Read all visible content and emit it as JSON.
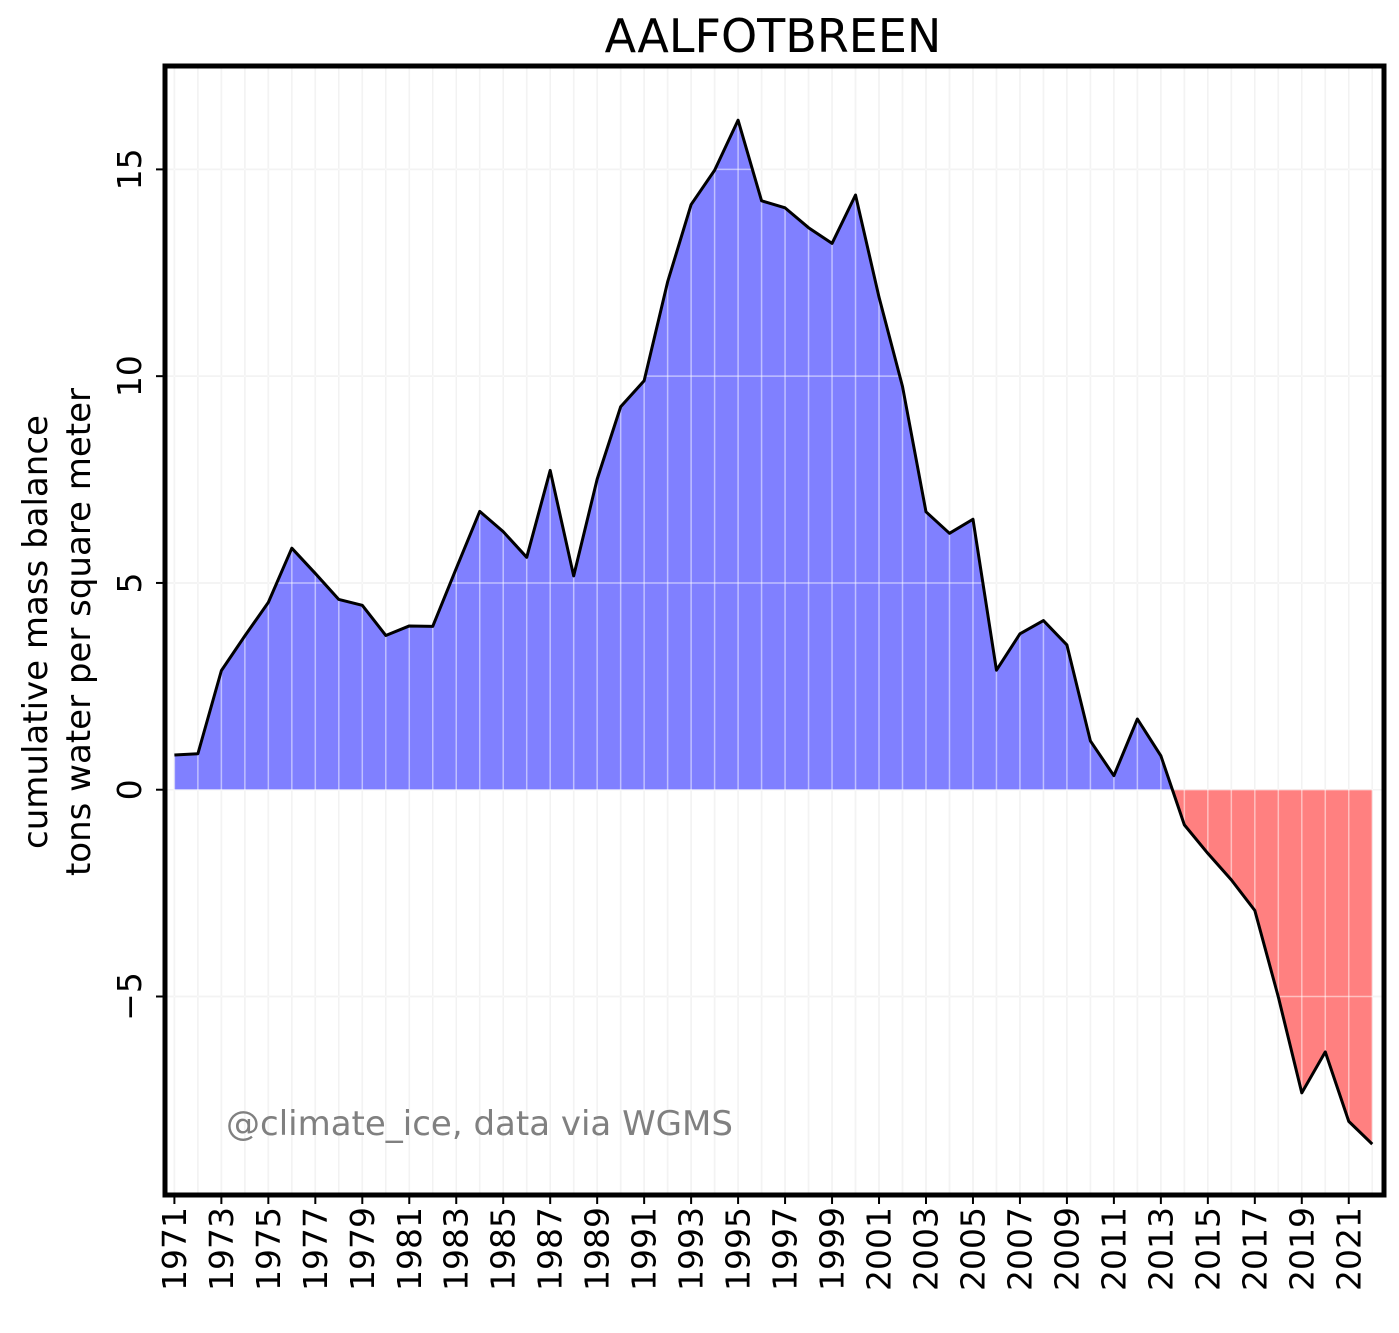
{
  "chart_data": {
    "type": "area",
    "title": "AALFOTBREEN",
    "ylabel_lines": [
      "cumulative mass balance",
      "tons water per square meter"
    ],
    "credit": "@climate_ice, data via WGMS",
    "x": [
      1971,
      1972,
      1973,
      1974,
      1975,
      1976,
      1977,
      1978,
      1979,
      1980,
      1981,
      1982,
      1983,
      1984,
      1985,
      1986,
      1987,
      1988,
      1989,
      1990,
      1991,
      1992,
      1993,
      1994,
      1995,
      1996,
      1997,
      1998,
      1999,
      2000,
      2001,
      2002,
      2003,
      2004,
      2005,
      2006,
      2007,
      2008,
      2009,
      2010,
      2011,
      2012,
      2013,
      2014,
      2015,
      2016,
      2017,
      2018,
      2019,
      2020,
      2021,
      2022
    ],
    "y": [
      0.84,
      0.87,
      2.88,
      3.72,
      4.53,
      5.84,
      5.23,
      4.6,
      4.46,
      3.73,
      3.96,
      3.95,
      5.35,
      6.73,
      6.24,
      5.62,
      7.72,
      5.17,
      7.51,
      9.26,
      9.89,
      12.28,
      14.15,
      14.98,
      16.19,
      14.24,
      14.07,
      13.59,
      13.21,
      14.38,
      11.91,
      9.75,
      6.72,
      6.2,
      6.54,
      2.89,
      3.77,
      4.09,
      3.5,
      1.18,
      0.34,
      1.71,
      0.82,
      -0.85,
      -1.54,
      -2.18,
      -2.92,
      -5.01,
      -7.33,
      -6.34,
      -8.02,
      -8.57
    ],
    "x_ticks": [
      "1971",
      "1973",
      "1975",
      "1977",
      "1979",
      "1981",
      "1983",
      "1985",
      "1987",
      "1989",
      "1991",
      "1993",
      "1995",
      "1997",
      "1999",
      "2001",
      "2003",
      "2005",
      "2007",
      "2009",
      "2011",
      "2013",
      "2015",
      "2017",
      "2019",
      "2021"
    ],
    "y_ticks": [
      "−5",
      "0",
      "5",
      "10",
      "15"
    ],
    "xlim": [
      1970.6,
      2022.5
    ],
    "ylim": [
      -9.8,
      17.5
    ],
    "grid": true,
    "colors": {
      "positive": "#8080ff",
      "negative": "#ff8080",
      "line": "#000000",
      "grid": "#e6e6e6",
      "credit": "#808080"
    }
  }
}
